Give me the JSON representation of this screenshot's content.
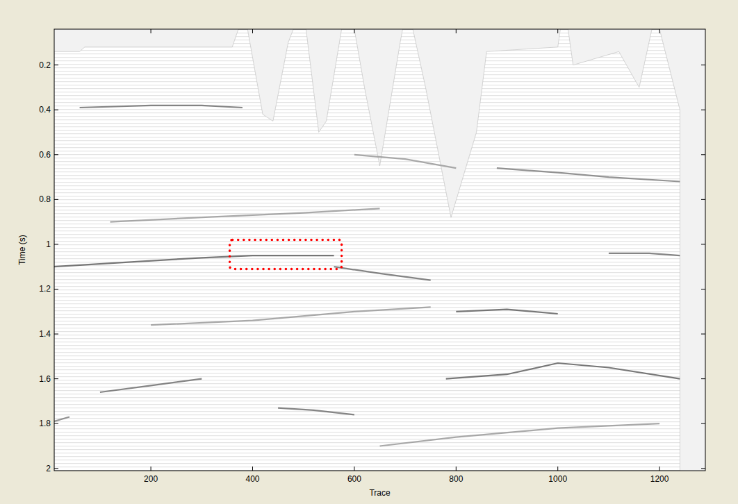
{
  "chart_data": {
    "type": "seismic",
    "x_label": "Trace",
    "y_label": "Time (s)",
    "xlim": [
      10,
      1290
    ],
    "ylim": [
      0.04,
      2.01
    ],
    "xticks": [
      200,
      400,
      600,
      800,
      1000,
      1200
    ],
    "yticks": [
      0.2,
      0.4,
      0.6,
      0.8,
      1,
      1.2,
      1.4,
      1.6,
      1.8,
      2
    ],
    "data_edge": {
      "x": [
        10,
        60,
        70,
        360,
        372,
        390,
        420,
        440,
        470,
        480,
        505,
        530,
        545,
        575,
        600,
        620,
        650,
        690,
        695,
        715,
        740,
        790,
        840,
        860,
        1000,
        1005,
        1020,
        1030,
        1120,
        1160,
        1185,
        1200,
        1240
      ],
      "values": [
        0.14,
        0.14,
        0.12,
        0.12,
        0.04,
        0.04,
        0.42,
        0.45,
        0.1,
        0.04,
        0.04,
        0.5,
        0.45,
        0.04,
        0.04,
        0.3,
        0.65,
        0.1,
        0.04,
        0.04,
        0.3,
        0.88,
        0.5,
        0.14,
        0.12,
        0.04,
        0.04,
        0.2,
        0.14,
        0.3,
        0.04,
        0.04,
        0.4
      ]
    },
    "series": [
      {
        "x": [
          60,
          200,
          300,
          380
        ],
        "values": [
          0.39,
          0.38,
          0.38,
          0.39
        ],
        "color": "#707070"
      },
      {
        "x": [
          10,
          150,
          300,
          400,
          560
        ],
        "values": [
          1.1,
          1.08,
          1.06,
          1.05,
          1.05
        ],
        "color": "#606060"
      },
      {
        "x": [
          560,
          650,
          750
        ],
        "values": [
          1.1,
          1.13,
          1.16
        ],
        "color": "#707070"
      },
      {
        "x": [
          800,
          900,
          1000
        ],
        "values": [
          1.3,
          1.29,
          1.31
        ],
        "color": "#606060"
      },
      {
        "x": [
          780,
          900,
          1000,
          1100,
          1240
        ],
        "values": [
          1.6,
          1.58,
          1.53,
          1.55,
          1.6
        ],
        "color": "#606060"
      },
      {
        "x": [
          100,
          200,
          300
        ],
        "values": [
          1.66,
          1.63,
          1.6
        ],
        "color": "#707070"
      },
      {
        "x": [
          880,
          1000,
          1100,
          1240
        ],
        "values": [
          0.66,
          0.68,
          0.7,
          0.72
        ],
        "color": "#808080"
      },
      {
        "x": [
          1100,
          1180,
          1240
        ],
        "values": [
          1.04,
          1.04,
          1.05
        ],
        "color": "#707070"
      },
      {
        "x": [
          450,
          520,
          600
        ],
        "values": [
          1.73,
          1.74,
          1.76
        ],
        "color": "#707070"
      },
      {
        "x": [
          10,
          40
        ],
        "values": [
          1.79,
          1.77
        ],
        "color": "#808080"
      },
      {
        "x": [
          120,
          300,
          500,
          650
        ],
        "values": [
          0.9,
          0.88,
          0.86,
          0.84
        ],
        "color": "#9a9a9a"
      },
      {
        "x": [
          200,
          400,
          600,
          750
        ],
        "values": [
          1.36,
          1.34,
          1.3,
          1.28
        ],
        "color": "#9a9a9a"
      },
      {
        "x": [
          650,
          800,
          1000,
          1200
        ],
        "values": [
          1.9,
          1.86,
          1.82,
          1.8
        ],
        "color": "#9a9a9a"
      },
      {
        "x": [
          600,
          700,
          800
        ],
        "values": [
          0.6,
          0.62,
          0.66
        ],
        "color": "#9a9a9a"
      }
    ],
    "box": {
      "x0": 355,
      "x1": 575,
      "y0": 0.98,
      "y1": 1.11,
      "color": "#ff0000"
    }
  }
}
